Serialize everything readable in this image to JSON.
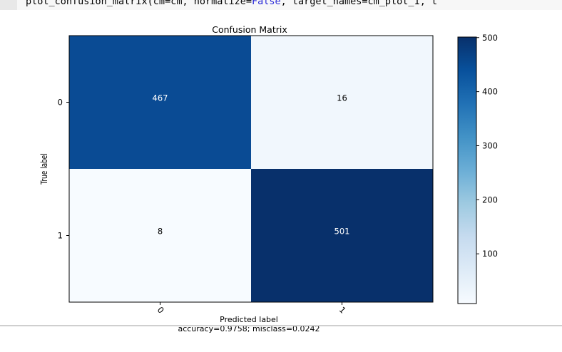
{
  "code": {
    "pre": "plot_confusion_matrix(cm=cm, normalize=",
    "kw": "False",
    "post": ", target_names=cm_plot_1, t"
  },
  "chart_data": {
    "type": "heatmap",
    "title": "Confusion Matrix",
    "xlabel": "Predicted label",
    "xlabel2": "accuracy=0.9758; misclass=0.0242",
    "ylabel": "True label",
    "x_tick_labels": [
      "0",
      "1"
    ],
    "y_tick_labels": [
      "0",
      "1"
    ],
    "matrix": [
      [
        467,
        16
      ],
      [
        8,
        501
      ]
    ],
    "colormap": "Blues",
    "colorbar": {
      "range": [
        8,
        501
      ],
      "ticks": [
        100,
        200,
        300,
        400,
        500
      ]
    },
    "colors": {
      "dark": "#08306b",
      "mid": "#0a4b94",
      "light": "#f1f7fd",
      "lightest": "#f7fbff"
    }
  }
}
